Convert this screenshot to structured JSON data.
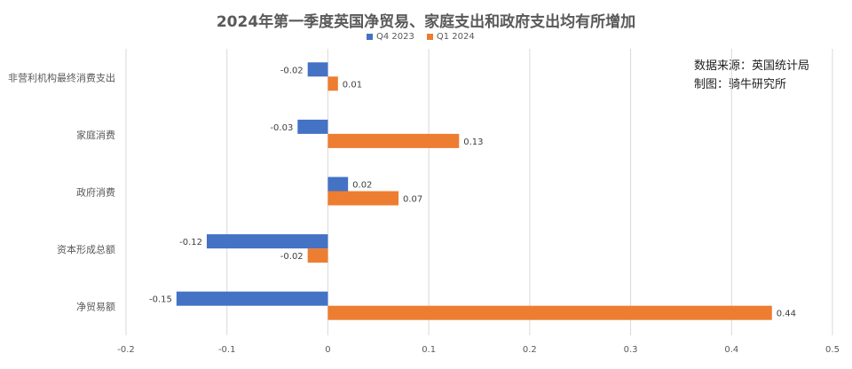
{
  "chart_data": {
    "type": "bar",
    "orientation": "horizontal",
    "title": "2024年第一季度英国净贸易、家庭支出和政府支出均有所增加",
    "categories": [
      "非营利机构最终消费支出",
      "家庭消费",
      "政府消费",
      "资本形成总额",
      "净贸易额"
    ],
    "series": [
      {
        "name": "Q4 2023",
        "color": "#4472C4",
        "values": [
          -0.02,
          -0.03,
          0.02,
          -0.12,
          -0.15
        ]
      },
      {
        "name": "Q1 2024",
        "color": "#ED7D31",
        "values": [
          0.01,
          0.13,
          0.07,
          -0.02,
          0.44
        ]
      }
    ],
    "value_labels": [
      [
        "-0.02",
        "-0.03",
        "0.02",
        "-0.12",
        "-0.15"
      ],
      [
        "0.01",
        "0.13",
        "0.07",
        "-0.02",
        "0.44"
      ]
    ],
    "xlim": [
      -0.2,
      0.5
    ],
    "xticks": [
      "-0.2",
      "-0.1",
      "0",
      "0.1",
      "0.2",
      "0.3",
      "0.4",
      "0.5"
    ],
    "xtick_values": [
      -0.2,
      -0.1,
      0,
      0.1,
      0.2,
      0.3,
      0.4,
      0.5
    ],
    "grid": true,
    "legend_position": "top"
  },
  "annotation": {
    "source": "数据来源：英国统计局",
    "maker": "制图：骑牛研究所"
  }
}
